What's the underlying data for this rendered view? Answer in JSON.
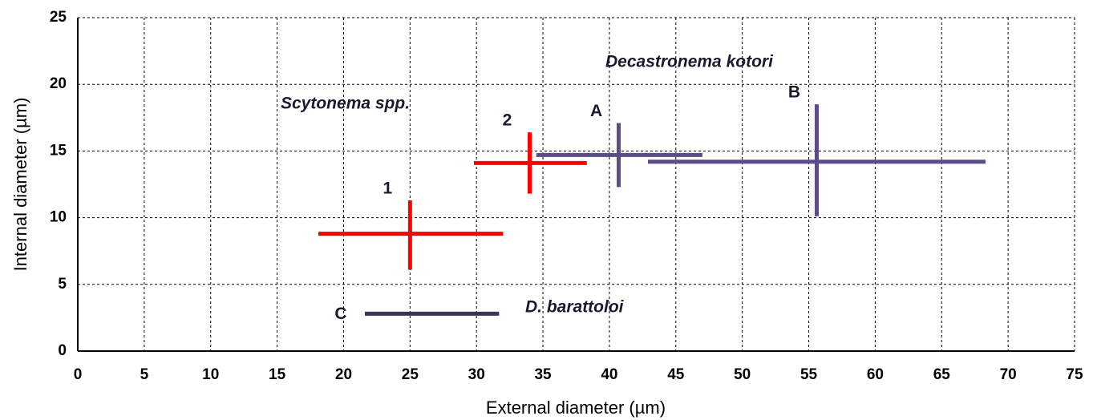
{
  "chart_data": {
    "type": "range-cross",
    "x_label": "External diameter (µm)",
    "y_label": "Internal diameter (µm)",
    "xlim": [
      0,
      75
    ],
    "xticks": [
      0,
      5,
      10,
      15,
      20,
      25,
      30,
      35,
      40,
      45,
      50,
      55,
      60,
      65,
      70,
      75
    ],
    "ylim": [
      0,
      25
    ],
    "yticks": [
      0,
      5,
      10,
      15,
      20,
      25
    ],
    "grid": true,
    "annotations": [
      "Scytonema spp.",
      "Decastronema kotori",
      "D. barattoloi"
    ],
    "series": [
      {
        "name": "1",
        "color": "#ff0000",
        "x_range": [
          18.1,
          32.0
        ],
        "y": 8.8,
        "x": 25.0,
        "y_range": [
          6.1,
          11.3
        ]
      },
      {
        "name": "2",
        "color": "#ff0000",
        "x_range": [
          29.8,
          38.3
        ],
        "y": 14.1,
        "x": 34.0,
        "y_range": [
          11.8,
          16.4
        ]
      },
      {
        "name": "A",
        "color": "#5b4b88",
        "x_range": [
          34.5,
          47.0
        ],
        "y": 14.7,
        "x": 40.7,
        "y_range": [
          12.3,
          17.1
        ]
      },
      {
        "name": "B",
        "color": "#5b4b88",
        "x_range": [
          42.9,
          68.3
        ],
        "y": 14.2,
        "x": 55.6,
        "y_range": [
          10.1,
          18.5
        ]
      },
      {
        "name": "C",
        "color": "#3a3552",
        "x_range": [
          21.6,
          31.7
        ],
        "y": 2.8
      }
    ]
  }
}
